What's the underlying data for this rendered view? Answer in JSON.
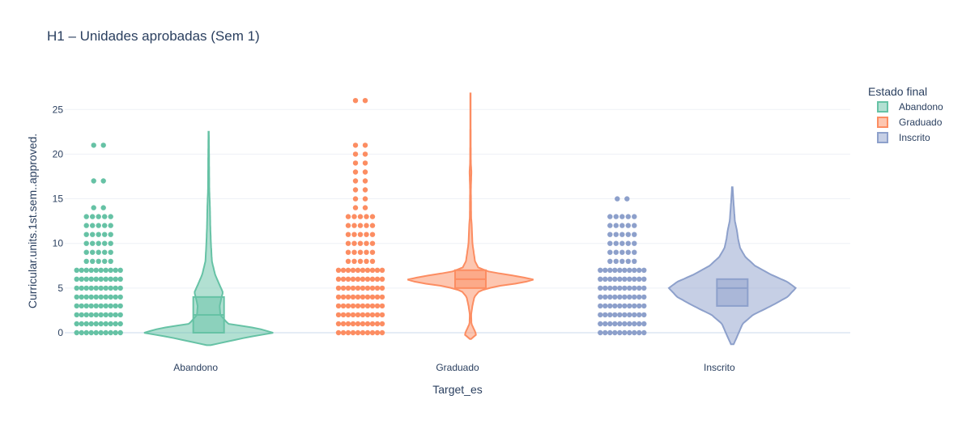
{
  "chart_data": {
    "type": "violin",
    "title": "H1 – Unidades aprobadas (Sem 1)",
    "xlabel": "Target_es",
    "ylabel": "Curricular.units.1st.sem..approved.",
    "categories": [
      "Abandono",
      "Graduado",
      "Inscrito"
    ],
    "ylim": [
      -1.5,
      28
    ],
    "yticks": [
      0,
      5,
      10,
      15,
      20,
      25
    ],
    "grid": true,
    "legend": {
      "title": "Estado final",
      "placement": "top-right",
      "entries": [
        "Abandono",
        "Graduado",
        "Inscrito"
      ]
    },
    "series": [
      {
        "name": "Abandono",
        "color": "#66c2a5",
        "points": [
          0,
          1,
          2,
          3,
          4,
          5,
          6,
          7,
          8,
          9,
          10,
          11,
          12,
          13,
          14,
          17,
          21
        ],
        "box": {
          "q1": 0,
          "median": 2,
          "q3": 4
        },
        "violin_range": [
          -1.4,
          22.5
        ],
        "density": [
          [
            -1.4,
            0.03
          ],
          [
            -0.5,
            0.6
          ],
          [
            0,
            1.0
          ],
          [
            0.5,
            0.75
          ],
          [
            1,
            0.3
          ],
          [
            2,
            0.18
          ],
          [
            3,
            0.17
          ],
          [
            4,
            0.2
          ],
          [
            4.5,
            0.22
          ],
          [
            5.5,
            0.16
          ],
          [
            6.5,
            0.1
          ],
          [
            8,
            0.05
          ],
          [
            10,
            0.035
          ],
          [
            12,
            0.025
          ],
          [
            14,
            0.02
          ],
          [
            16,
            0.01
          ],
          [
            18,
            0.008
          ],
          [
            20,
            0.006
          ],
          [
            22.5,
            0.003
          ]
        ]
      },
      {
        "name": "Graduado",
        "color": "#fc8d62",
        "points": [
          0,
          1,
          2,
          3,
          4,
          5,
          6,
          7,
          8,
          9,
          10,
          11,
          12,
          13,
          14,
          15,
          16,
          17,
          18,
          19,
          20,
          21,
          26
        ],
        "box": {
          "q1": 5,
          "median": 6,
          "q3": 7
        },
        "violin_range": [
          -0.7,
          26.8
        ],
        "density": [
          [
            -0.7,
            0.01
          ],
          [
            -0.2,
            0.09
          ],
          [
            0.3,
            0.06
          ],
          [
            1,
            0.015
          ],
          [
            2,
            0.01
          ],
          [
            3,
            0.03
          ],
          [
            4,
            0.06
          ],
          [
            4.7,
            0.14
          ],
          [
            5.2,
            0.4
          ],
          [
            5.5,
            0.7
          ],
          [
            5.9,
            1.0
          ],
          [
            6.3,
            0.75
          ],
          [
            6.8,
            0.3
          ],
          [
            7.3,
            0.12
          ],
          [
            8,
            0.07
          ],
          [
            9,
            0.05
          ],
          [
            10,
            0.03
          ],
          [
            11,
            0.025
          ],
          [
            12,
            0.02
          ],
          [
            13,
            0.01
          ],
          [
            15,
            0.008
          ],
          [
            16,
            0.006
          ],
          [
            17,
            0.01
          ],
          [
            18,
            0.014
          ],
          [
            19,
            0.006
          ],
          [
            21,
            0.004
          ],
          [
            23,
            0.003
          ],
          [
            26.8,
            0.002
          ]
        ]
      },
      {
        "name": "Inscrito",
        "color": "#8da0cb",
        "points": [
          0,
          1,
          2,
          3,
          4,
          5,
          6,
          7,
          8,
          9,
          10,
          11,
          12,
          13,
          15
        ],
        "box": {
          "q1": 3,
          "median": 5,
          "q3": 6
        },
        "violin_range": [
          -1.3,
          16.3
        ],
        "density": [
          [
            -1.3,
            0.02
          ],
          [
            -0.5,
            0.07
          ],
          [
            0,
            0.1
          ],
          [
            1,
            0.16
          ],
          [
            2,
            0.32
          ],
          [
            3,
            0.6
          ],
          [
            4,
            0.85
          ],
          [
            5,
            0.98
          ],
          [
            5.7,
            0.85
          ],
          [
            6.5,
            0.6
          ],
          [
            7.5,
            0.35
          ],
          [
            8.5,
            0.2
          ],
          [
            9.5,
            0.12
          ],
          [
            10.5,
            0.09
          ],
          [
            11.5,
            0.07
          ],
          [
            12.5,
            0.04
          ],
          [
            14,
            0.025
          ],
          [
            15,
            0.015
          ],
          [
            16.3,
            0.005
          ]
        ]
      }
    ]
  }
}
